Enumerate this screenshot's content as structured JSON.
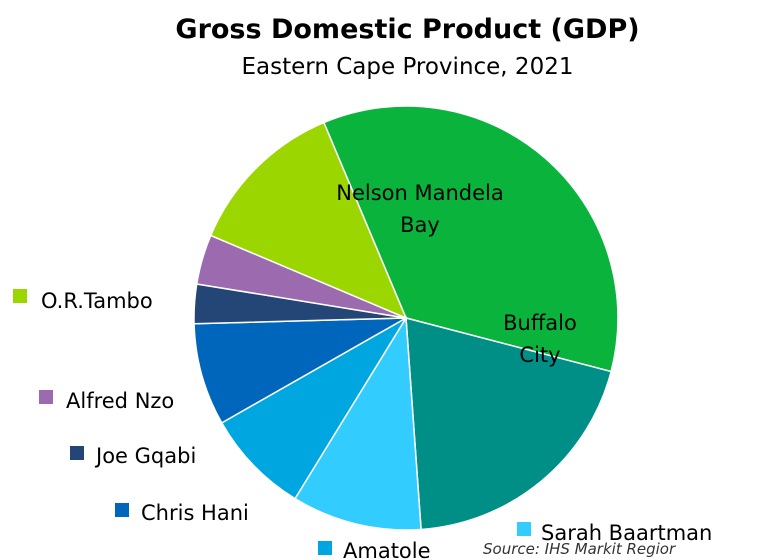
{
  "chart_data": {
    "type": "pie",
    "title": "Gross Domestic Product (GDP)",
    "subtitle": "Eastern Cape Province, 2021",
    "source": "Source: IHS Markit Regior",
    "slices": [
      {
        "label": "Nelson Mandela Bay",
        "value": 35.4,
        "color": "#0AB43C"
      },
      {
        "label": "Buffalo City",
        "value": 19.8,
        "color": "#008F87"
      },
      {
        "label": "Sarah Baartman",
        "value": 9.9,
        "color": "#33CCFF"
      },
      {
        "label": "Amatole",
        "value": 8.0,
        "color": "#00A6E0"
      },
      {
        "label": "Chris Hani",
        "value": 7.8,
        "color": "#0066BB"
      },
      {
        "label": "Joe Gqabi",
        "value": 3.0,
        "color": "#234677"
      },
      {
        "label": "Alfred Nzo",
        "value": 3.8,
        "color": "#9B6AAF"
      },
      {
        "label": "O.R.Tambo",
        "value": 12.3,
        "color": "#9CD600"
      }
    ],
    "inside_labels": [
      "Nelson Mandela Bay",
      "Buffalo City"
    ],
    "legend_position": "left-and-bottom"
  }
}
